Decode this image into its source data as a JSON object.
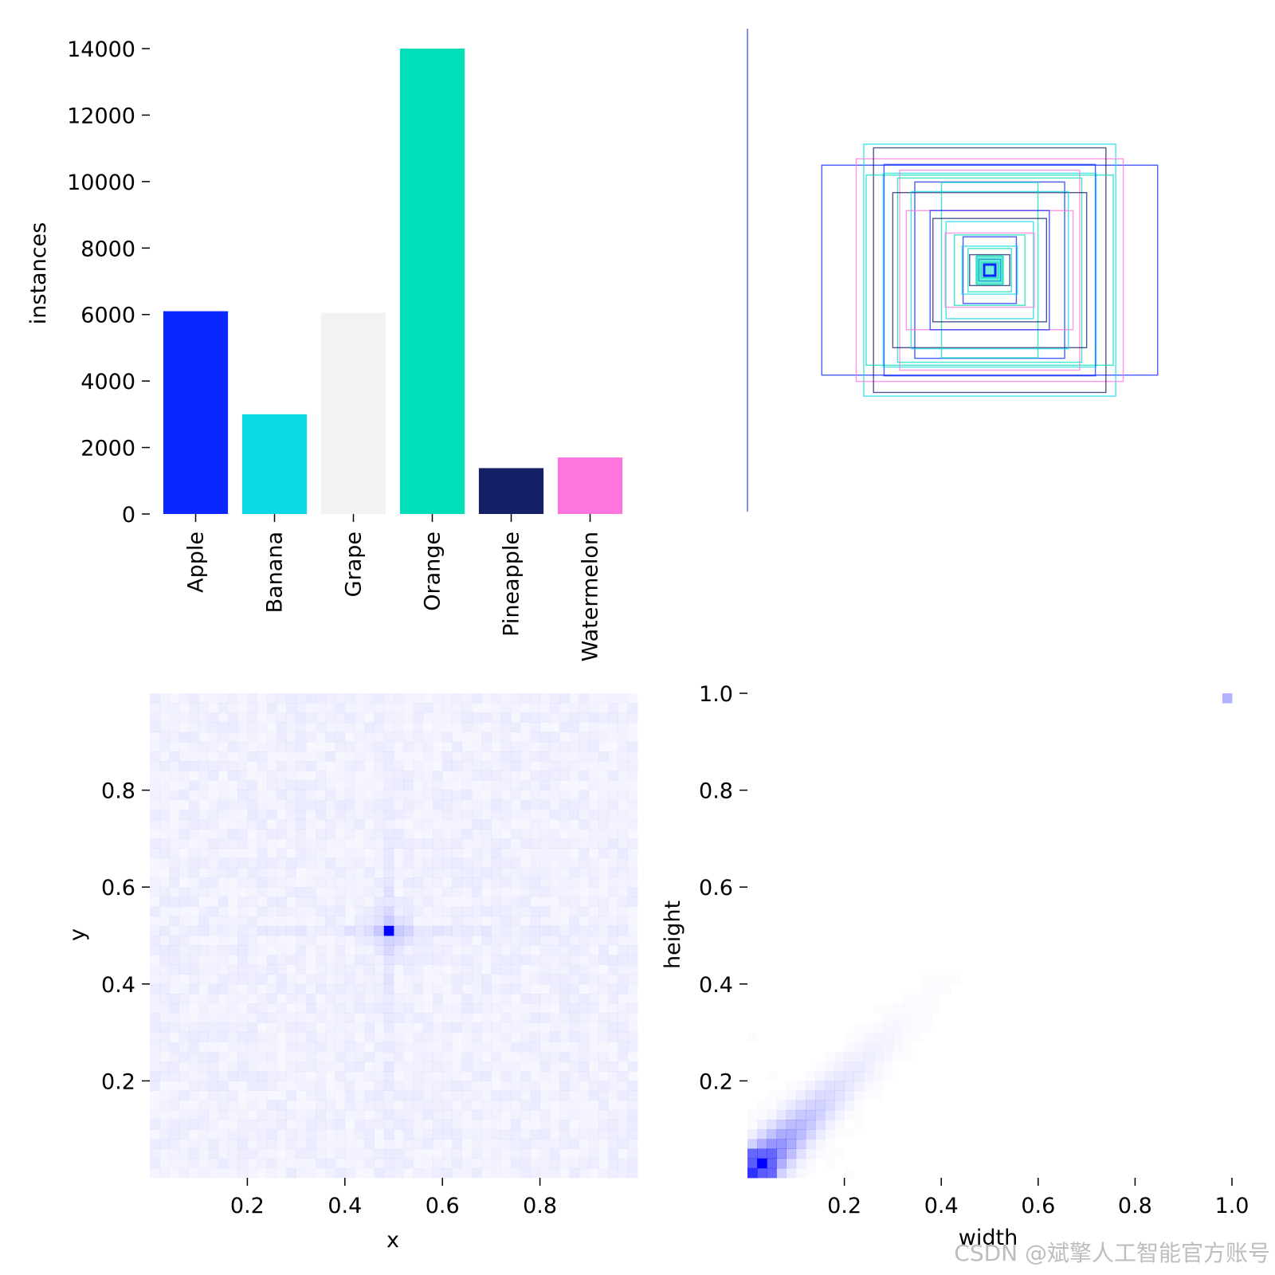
{
  "chart_data": [
    {
      "panel": "class-instances",
      "type": "bar",
      "categories": [
        "Apple",
        "Banana",
        "Grape",
        "Orange",
        "Pineapple",
        "Watermelon"
      ],
      "values": [
        6100,
        3000,
        6050,
        14000,
        1380,
        1700
      ],
      "colors": [
        "#0a27ff",
        "#0bd9e6",
        "#f2f2f2",
        "#00dfb7",
        "#141f66",
        "#ff75de"
      ],
      "xlabel": "",
      "ylabel": "instances",
      "ylim": [
        0,
        14000
      ],
      "yticks": [
        0,
        2000,
        4000,
        6000,
        8000,
        10000,
        12000,
        14000
      ],
      "ytick_labels": [
        "0",
        "2000",
        "4000",
        "6000",
        "8000",
        "10000",
        "12000",
        "14000"
      ]
    },
    {
      "panel": "box-overlay",
      "type": "other",
      "description_free": true,
      "box_sizes": [
        0.98,
        0.93,
        0.9,
        0.88,
        0.8,
        0.78,
        0.75,
        0.7,
        0.68,
        0.64,
        0.6,
        0.58,
        0.52,
        0.48,
        0.44,
        0.4,
        0.34,
        0.3,
        0.26,
        0.22,
        0.19,
        0.16,
        0.13,
        0.1,
        0.08,
        0.06,
        0.04,
        0.02
      ],
      "box_aspects": [
        1.6,
        1.0,
        1.2,
        0.95,
        1.3,
        1.0,
        1.1,
        0.9,
        1.0,
        1.25,
        0.85,
        1.0,
        1.4,
        0.55,
        1.0,
        1.1,
        0.9,
        1.2,
        1.0,
        0.8,
        1.15,
        1.0,
        1.3,
        0.9,
        1.0,
        1.1,
        1.0,
        1.0
      ],
      "box_colors": [
        "#0a27ff",
        "#0bd9e6",
        "#ff75de",
        "#141f66",
        "#00dfb7",
        "#0a27ff",
        "#0bd9e6",
        "#ff75de",
        "#00dfb7",
        "#141f66",
        "#0a27ff",
        "#0bd9e6",
        "#ff75de",
        "#00dfb7",
        "#0a27ff",
        "#141f66",
        "#0bd9e6",
        "#ff75de",
        "#00dfb7",
        "#0a27ff",
        "#0bd9e6",
        "#00dfb7",
        "#141f66",
        "#00dfb7",
        "#0a27ff",
        "#00dfb7",
        "#0a27ff",
        "#ffffff"
      ]
    },
    {
      "panel": "xy-density",
      "type": "heatmap",
      "xlabel": "x",
      "ylabel": "y",
      "xlim": [
        0,
        1
      ],
      "ylim": [
        0,
        1
      ],
      "xticks": [
        0.2,
        0.4,
        0.6,
        0.8
      ],
      "xtick_labels": [
        "0.2",
        "0.4",
        "0.6",
        "0.8"
      ],
      "yticks": [
        0.2,
        0.4,
        0.6,
        0.8
      ],
      "ytick_labels": [
        "0.2",
        "0.4",
        "0.6",
        "0.8"
      ],
      "grid_bins": 50,
      "peak": [
        0.49,
        0.51
      ],
      "color": "#0000ff"
    },
    {
      "panel": "wh-density",
      "type": "heatmap",
      "xlabel": "width",
      "ylabel": "height",
      "xlim": [
        0,
        1
      ],
      "ylim": [
        0,
        1
      ],
      "xticks": [
        0.2,
        0.4,
        0.6,
        0.8,
        1.0
      ],
      "xtick_labels": [
        "0.2",
        "0.4",
        "0.6",
        "0.8",
        "1.0"
      ],
      "yticks": [
        0.2,
        0.4,
        0.6,
        0.8,
        1.0
      ],
      "ytick_labels": [
        "0.2",
        "0.4",
        "0.6",
        "0.8",
        "1.0"
      ],
      "grid_bins": 50,
      "peak": [
        0.03,
        0.03
      ],
      "corner_cell": [
        0.99,
        0.99
      ],
      "color": "#0000ff"
    }
  ],
  "watermark": "CSDN @斌擎人工智能官方账号"
}
